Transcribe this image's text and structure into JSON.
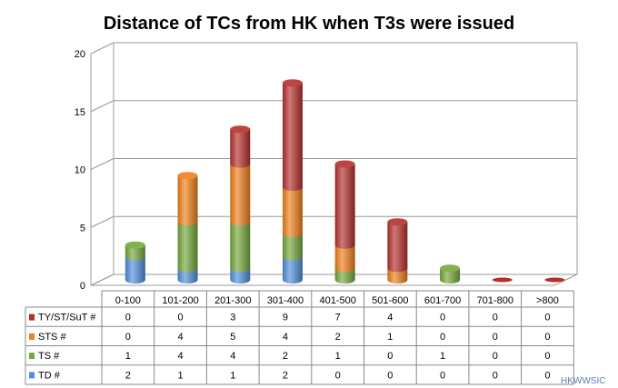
{
  "chart_data": {
    "type": "bar",
    "stacked": true,
    "three_d": true,
    "title": "Distance of TCs from HK when T3s were issued",
    "categories": [
      "0-100",
      "101-200",
      "201-300",
      "301-400",
      "401-500",
      "501-600",
      "601-700",
      "701-800",
      ">800"
    ],
    "series": [
      {
        "name": "TD #",
        "color": "#4f8fdc",
        "values": [
          2,
          1,
          1,
          2,
          0,
          0,
          0,
          0,
          0
        ]
      },
      {
        "name": "TS #",
        "color": "#74a83a",
        "values": [
          1,
          4,
          4,
          2,
          1,
          0,
          1,
          0,
          0
        ]
      },
      {
        "name": "STS #",
        "color": "#f07f17",
        "values": [
          0,
          4,
          5,
          4,
          2,
          1,
          0,
          0,
          0
        ]
      },
      {
        "name": "TY/ST/SuT #",
        "color": "#b52f2c",
        "values": [
          0,
          0,
          3,
          9,
          7,
          4,
          0,
          0,
          0
        ]
      }
    ],
    "y_ticks": [
      0,
      5,
      10,
      15,
      20
    ],
    "ylim": [
      0,
      20
    ],
    "grid": true,
    "legend": "data-table"
  },
  "watermark": "HKWWSIC"
}
